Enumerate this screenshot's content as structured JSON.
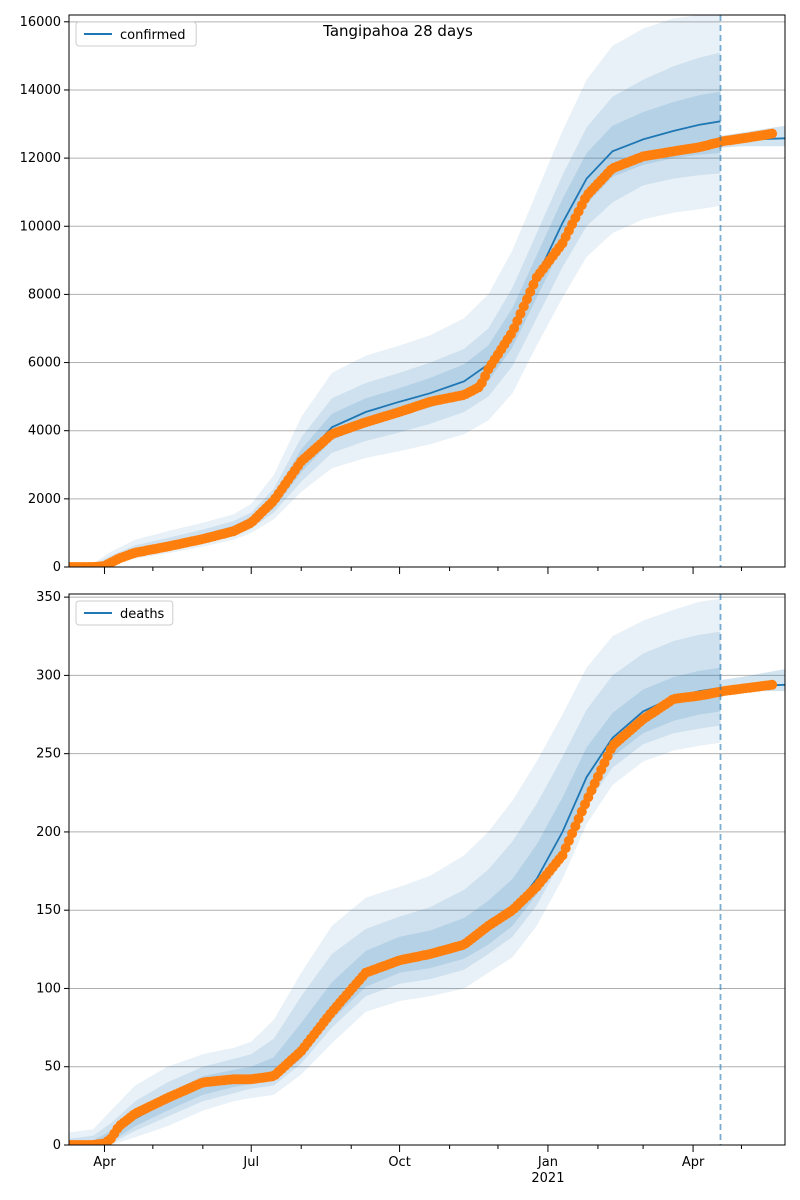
{
  "title": "Tangipahoa 28 days",
  "colors": {
    "model": "#1f77b4",
    "observed": "#ff7f0e",
    "grid": "#b0b0b0"
  },
  "x_axis": {
    "tick_labels": [
      "Apr",
      "Jul",
      "Oct",
      "Jan",
      "Apr"
    ],
    "tick_dates": [
      "2020-04-01",
      "2020-07-01",
      "2020-10-01",
      "2021-01-01",
      "2021-04-01"
    ],
    "year_label": "2021",
    "year_label_date": "2021-01-01",
    "minor_tick_dates": [
      "2020-05-01",
      "2020-06-01",
      "2020-08-01",
      "2020-09-01",
      "2020-11-01",
      "2020-12-01",
      "2021-02-01",
      "2021-03-01",
      "2021-05-01"
    ],
    "range": [
      "2020-03-10",
      "2021-05-28"
    ]
  },
  "forecast_start": "2021-04-18",
  "chart_data": [
    {
      "type": "line",
      "legend": "confirmed",
      "legend_position": "upper-left",
      "show_title": true,
      "grid": "horizontal",
      "ylim": [
        0,
        16200
      ],
      "yticks": [
        0,
        2000,
        4000,
        6000,
        8000,
        10000,
        12000,
        14000,
        16000
      ],
      "series": [
        {
          "name": "confirmed",
          "kind": "model",
          "x": [
            "2020-03-10",
            "2020-03-25",
            "2020-04-05",
            "2020-04-20",
            "2020-05-10",
            "2020-06-01",
            "2020-06-20",
            "2020-07-01",
            "2020-07-15",
            "2020-08-01",
            "2020-08-20",
            "2020-09-10",
            "2020-10-01",
            "2020-10-20",
            "2020-11-10",
            "2020-11-25",
            "2020-12-10",
            "2020-12-25",
            "2021-01-10",
            "2021-01-25",
            "2021-02-10",
            "2021-03-01",
            "2021-03-20",
            "2021-04-05",
            "2021-04-18"
          ],
          "y": [
            0,
            20,
            200,
            450,
            620,
            850,
            1100,
            1350,
            1900,
            3100,
            4100,
            4550,
            4850,
            5100,
            5450,
            5950,
            7000,
            8500,
            10100,
            11400,
            12200,
            12550,
            12800,
            12980,
            13080
          ]
        },
        {
          "name": "forecast",
          "kind": "forecast",
          "x": [
            "2021-04-18",
            "2021-05-01",
            "2021-05-28"
          ],
          "y": [
            12480,
            12540,
            12580
          ]
        },
        {
          "name": "observed",
          "kind": "observed",
          "x": [
            "2020-03-10",
            "2020-03-25",
            "2020-04-01",
            "2020-04-10",
            "2020-04-20",
            "2020-05-10",
            "2020-06-01",
            "2020-06-20",
            "2020-07-01",
            "2020-07-15",
            "2020-08-01",
            "2020-08-20",
            "2020-09-10",
            "2020-10-01",
            "2020-10-20",
            "2020-11-10",
            "2020-11-20",
            "2020-11-25",
            "2020-12-10",
            "2020-12-25",
            "2021-01-10",
            "2021-01-25",
            "2021-02-10",
            "2021-03-01",
            "2021-03-20",
            "2021-04-05",
            "2021-04-20",
            "2021-05-05",
            "2021-05-20"
          ],
          "y": [
            0,
            0,
            30,
            250,
            420,
            600,
            820,
            1050,
            1300,
            1950,
            3100,
            3900,
            4250,
            4550,
            4850,
            5050,
            5300,
            5800,
            6900,
            8500,
            9500,
            10900,
            11700,
            12050,
            12200,
            12320,
            12500,
            12600,
            12720
          ]
        }
      ],
      "bands": [
        {
          "level": "outer",
          "x": [
            "2020-03-10",
            "2020-03-25",
            "2020-04-05",
            "2020-04-20",
            "2020-05-10",
            "2020-06-01",
            "2020-06-20",
            "2020-07-01",
            "2020-07-15",
            "2020-08-01",
            "2020-08-20",
            "2020-09-10",
            "2020-10-01",
            "2020-10-20",
            "2020-11-10",
            "2020-11-25",
            "2020-12-10",
            "2020-12-25",
            "2021-01-10",
            "2021-01-25",
            "2021-02-10",
            "2021-03-01",
            "2021-03-20",
            "2021-04-05",
            "2021-04-18"
          ],
          "upper": [
            40,
            100,
            450,
            800,
            1050,
            1300,
            1550,
            1850,
            2700,
            4400,
            5700,
            6200,
            6500,
            6800,
            7300,
            8000,
            9300,
            11000,
            12800,
            14300,
            15300,
            15800,
            16100,
            16200,
            16200
          ],
          "lower": [
            0,
            0,
            80,
            250,
            400,
            600,
            800,
            1000,
            1400,
            2200,
            2900,
            3200,
            3400,
            3600,
            3900,
            4300,
            5100,
            6500,
            7900,
            9100,
            9800,
            10200,
            10400,
            10500,
            10600
          ]
        },
        {
          "level": "middle",
          "x": [
            "2020-03-10",
            "2020-03-25",
            "2020-04-05",
            "2020-04-20",
            "2020-05-10",
            "2020-06-01",
            "2020-06-20",
            "2020-07-01",
            "2020-07-15",
            "2020-08-01",
            "2020-08-20",
            "2020-09-10",
            "2020-10-01",
            "2020-10-20",
            "2020-11-10",
            "2020-11-25",
            "2020-12-10",
            "2020-12-25",
            "2021-01-10",
            "2021-01-25",
            "2021-02-10",
            "2021-03-01",
            "2021-03-20",
            "2021-04-05",
            "2021-04-18"
          ],
          "upper": [
            20,
            60,
            330,
            640,
            850,
            1100,
            1350,
            1600,
            2300,
            3800,
            4950,
            5400,
            5700,
            6000,
            6400,
            7000,
            8200,
            9800,
            11500,
            12900,
            13800,
            14300,
            14700,
            14950,
            15100
          ],
          "lower": [
            0,
            0,
            120,
            310,
            480,
            680,
            900,
            1120,
            1600,
            2500,
            3350,
            3700,
            3950,
            4200,
            4550,
            5000,
            5900,
            7300,
            8800,
            10000,
            10700,
            11200,
            11400,
            11500,
            11550
          ]
        },
        {
          "level": "inner",
          "x": [
            "2020-03-10",
            "2020-03-25",
            "2020-04-05",
            "2020-04-20",
            "2020-05-10",
            "2020-06-01",
            "2020-06-20",
            "2020-07-01",
            "2020-07-15",
            "2020-08-01",
            "2020-08-20",
            "2020-09-10",
            "2020-10-01",
            "2020-10-20",
            "2020-11-10",
            "2020-11-25",
            "2020-12-10",
            "2020-12-25",
            "2021-01-10",
            "2021-01-25",
            "2021-02-10",
            "2021-03-01",
            "2021-03-20",
            "2021-04-05",
            "2021-04-18"
          ],
          "upper": [
            10,
            40,
            260,
            540,
            730,
            960,
            1220,
            1470,
            2100,
            3450,
            4500,
            4950,
            5250,
            5550,
            5950,
            6500,
            7600,
            9150,
            10800,
            12150,
            12950,
            13350,
            13650,
            13850,
            13950
          ],
          "lower": [
            0,
            5,
            150,
            370,
            530,
            750,
            990,
            1230,
            1720,
            2780,
            3720,
            4130,
            4430,
            4680,
            5000,
            5450,
            6450,
            7900,
            9450,
            10650,
            11450,
            11800,
            12000,
            12100,
            12150
          ]
        },
        {
          "level": "forecast",
          "x": [
            "2021-04-18",
            "2021-05-01",
            "2021-05-28"
          ],
          "upper": [
            12650,
            12750,
            12950
          ],
          "lower": [
            12300,
            12350,
            12350
          ]
        }
      ]
    },
    {
      "type": "line",
      "legend": "deaths",
      "legend_position": "upper-left",
      "show_title": false,
      "grid": "horizontal",
      "ylim": [
        0,
        352
      ],
      "yticks": [
        0,
        50,
        100,
        150,
        200,
        250,
        300,
        350
      ],
      "series": [
        {
          "name": "deaths",
          "kind": "model",
          "x": [
            "2020-03-10",
            "2020-03-25",
            "2020-04-05",
            "2020-04-20",
            "2020-05-10",
            "2020-06-01",
            "2020-06-20",
            "2020-07-01",
            "2020-07-15",
            "2020-08-01",
            "2020-08-20",
            "2020-09-10",
            "2020-10-01",
            "2020-10-20",
            "2020-11-10",
            "2020-11-25",
            "2020-12-10",
            "2020-12-25",
            "2021-01-10",
            "2021-01-25",
            "2021-02-10",
            "2021-03-01",
            "2021-03-20",
            "2021-04-05",
            "2021-04-18"
          ],
          "y": [
            0,
            0,
            5,
            17,
            28,
            38,
            42,
            43,
            46,
            62,
            88,
            110,
            120,
            123,
            130,
            138,
            150,
            170,
            200,
            235,
            260,
            277,
            286,
            290,
            292
          ]
        },
        {
          "name": "forecast",
          "kind": "forecast",
          "x": [
            "2021-04-18",
            "2021-05-01",
            "2021-05-28"
          ],
          "y": [
            292,
            293,
            294
          ]
        },
        {
          "name": "observed",
          "kind": "observed",
          "x": [
            "2020-03-10",
            "2020-03-25",
            "2020-04-01",
            "2020-04-05",
            "2020-04-10",
            "2020-04-20",
            "2020-05-10",
            "2020-06-01",
            "2020-06-20",
            "2020-07-01",
            "2020-07-15",
            "2020-08-01",
            "2020-08-20",
            "2020-09-10",
            "2020-10-01",
            "2020-10-20",
            "2020-11-10",
            "2020-11-25",
            "2020-12-10",
            "2020-12-25",
            "2021-01-10",
            "2021-01-25",
            "2021-02-10",
            "2021-03-01",
            "2021-03-20",
            "2021-04-05",
            "2021-04-20",
            "2021-05-05",
            "2021-05-20"
          ],
          "y": [
            0,
            0,
            1,
            4,
            12,
            20,
            30,
            40,
            42,
            42,
            44,
            60,
            85,
            110,
            118,
            122,
            128,
            140,
            150,
            165,
            185,
            220,
            255,
            272,
            285,
            287,
            290,
            292,
            294
          ]
        }
      ],
      "bands": [
        {
          "level": "outer",
          "x": [
            "2020-03-10",
            "2020-03-25",
            "2020-04-05",
            "2020-04-20",
            "2020-05-10",
            "2020-06-01",
            "2020-06-20",
            "2020-07-01",
            "2020-07-15",
            "2020-08-01",
            "2020-08-20",
            "2020-09-10",
            "2020-10-01",
            "2020-10-20",
            "2020-11-10",
            "2020-11-25",
            "2020-12-10",
            "2020-12-25",
            "2021-01-10",
            "2021-01-25",
            "2021-02-10",
            "2021-03-01",
            "2021-03-20",
            "2021-04-05",
            "2021-04-18"
          ],
          "upper": [
            8,
            10,
            22,
            38,
            50,
            58,
            62,
            66,
            80,
            110,
            140,
            158,
            165,
            172,
            185,
            200,
            220,
            245,
            275,
            305,
            325,
            335,
            342,
            347,
            349
          ],
          "lower": [
            0,
            0,
            0,
            5,
            12,
            22,
            28,
            30,
            32,
            45,
            65,
            85,
            92,
            95,
            100,
            110,
            120,
            140,
            170,
            205,
            230,
            245,
            252,
            255,
            257
          ]
        },
        {
          "level": "middle",
          "x": [
            "2020-03-10",
            "2020-03-25",
            "2020-04-05",
            "2020-04-20",
            "2020-05-10",
            "2020-06-01",
            "2020-06-20",
            "2020-07-01",
            "2020-07-15",
            "2020-08-01",
            "2020-08-20",
            "2020-09-10",
            "2020-10-01",
            "2020-10-20",
            "2020-11-10",
            "2020-11-25",
            "2020-12-10",
            "2020-12-25",
            "2021-01-10",
            "2021-01-25",
            "2021-02-10",
            "2021-03-01",
            "2021-03-20",
            "2021-04-05",
            "2021-04-18"
          ],
          "upper": [
            4,
            6,
            14,
            28,
            40,
            50,
            55,
            58,
            68,
            95,
            122,
            138,
            146,
            152,
            163,
            176,
            194,
            218,
            248,
            278,
            300,
            314,
            322,
            326,
            328
          ],
          "lower": [
            0,
            0,
            1,
            9,
            18,
            28,
            33,
            36,
            38,
            52,
            75,
            95,
            103,
            106,
            112,
            122,
            133,
            153,
            183,
            217,
            241,
            256,
            263,
            266,
            268
          ]
        },
        {
          "level": "inner",
          "x": [
            "2020-03-10",
            "2020-03-25",
            "2020-04-05",
            "2020-04-20",
            "2020-05-10",
            "2020-06-01",
            "2020-06-20",
            "2020-07-01",
            "2020-07-15",
            "2020-08-01",
            "2020-08-20",
            "2020-09-10",
            "2020-10-01",
            "2020-10-20",
            "2020-11-10",
            "2020-11-25",
            "2020-12-10",
            "2020-12-25",
            "2021-01-10",
            "2021-01-25",
            "2021-02-10",
            "2021-03-01",
            "2021-03-20",
            "2021-04-05",
            "2021-04-18"
          ],
          "upper": [
            2,
            3,
            9,
            22,
            33,
            44,
            48,
            50,
            56,
            78,
            104,
            124,
            133,
            137,
            145,
            156,
            170,
            192,
            222,
            254,
            276,
            291,
            299,
            303,
            305
          ],
          "lower": [
            0,
            0,
            2,
            12,
            22,
            32,
            37,
            39,
            41,
            55,
            80,
            101,
            110,
            113,
            119,
            128,
            140,
            160,
            190,
            224,
            248,
            263,
            271,
            275,
            277
          ]
        },
        {
          "level": "forecast",
          "x": [
            "2021-04-18",
            "2021-05-01",
            "2021-05-28"
          ],
          "upper": [
            297,
            299,
            304
          ],
          "lower": [
            289,
            290,
            290
          ]
        }
      ]
    }
  ]
}
